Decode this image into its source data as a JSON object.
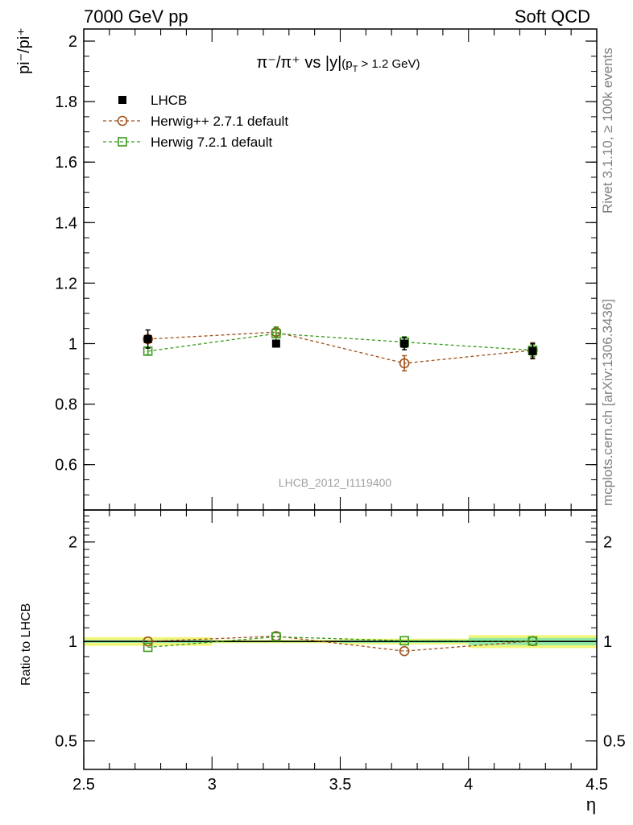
{
  "header": {
    "energy_label": "7000 GeV pp",
    "process_label": "Soft QCD"
  },
  "side_labels": {
    "rivet": "Rivet 3.1.10, ≥ 100k events",
    "mcplots": "mcplots.cern.ch [arXiv:1306.3436]"
  },
  "chart_data": [
    {
      "type": "scatter",
      "title_main": "π⁻/π⁺ vs |y|",
      "title_sub": "(p",
      "title_sub_index": "T",
      "title_sub_rest": " > 1.2 GeV)",
      "ylabel": "pi⁻/pi⁺",
      "watermark": "LHCB_2012_I1119400",
      "ylim": [
        0.45,
        2.04
      ],
      "y_ticks": [
        "0.6",
        "0.8",
        "1",
        "1.2",
        "1.4",
        "1.6",
        "1.8",
        "2"
      ],
      "legend_position": "top-left",
      "series": [
        {
          "name": "LHCB",
          "color": "#000000",
          "marker": "filled-square",
          "line": "none",
          "x": [
            2.75,
            3.25,
            3.75,
            4.25
          ],
          "y": [
            1.015,
            1.0,
            1.0,
            0.975
          ],
          "err": [
            0.03,
            0.01,
            0.02,
            0.025
          ]
        },
        {
          "name": "Herwig++ 2.7.1 default",
          "color": "#a0521b",
          "marker": "open-circle",
          "line": "dashed",
          "x": [
            2.75,
            3.25,
            3.75,
            4.25
          ],
          "y": [
            1.015,
            1.038,
            0.935,
            0.978
          ],
          "err": [
            0.012,
            0.012,
            0.025,
            0.025
          ]
        },
        {
          "name": "Herwig 7.2.1 default",
          "color": "#3c9a1e",
          "marker": "open-square",
          "line": "dashed",
          "x": [
            2.75,
            3.25,
            3.75,
            4.25
          ],
          "y": [
            0.975,
            1.033,
            1.005,
            0.978
          ],
          "err": [
            0.012,
            0.022,
            0.018,
            0.02
          ]
        }
      ]
    },
    {
      "type": "scatter",
      "ylabel": "Ratio to LHCB",
      "xlabel": "η",
      "xlim": [
        2.5,
        4.5
      ],
      "x_ticks": [
        "2.5",
        "3",
        "3.5",
        "4",
        "4.5"
      ],
      "y_scale": "log",
      "ylim": [
        0.41,
        2.5
      ],
      "y_ticks": [
        "0.5",
        "1",
        "2"
      ],
      "reference_line": 1,
      "band_colors": {
        "outer": "#f2f57a",
        "inner": "#8fe8a8"
      },
      "bands": [
        {
          "x0": 2.5,
          "x1": 3.0,
          "outer": 0.03,
          "inner": 0.01
        },
        {
          "x0": 3.0,
          "x1": 3.5,
          "outer": 0.012,
          "inner": 0.006
        },
        {
          "x0": 3.5,
          "x1": 4.0,
          "outer": 0.02,
          "inner": 0.01
        },
        {
          "x0": 4.0,
          "x1": 4.5,
          "outer": 0.045,
          "inner": 0.025
        }
      ],
      "series": [
        {
          "name": "Herwig++ 2.7.1 default",
          "color": "#a0521b",
          "marker": "open-circle",
          "x": [
            2.75,
            3.25,
            3.75,
            4.25
          ],
          "y": [
            1.0,
            1.038,
            0.935,
            1.003
          ]
        },
        {
          "name": "Herwig 7.2.1 default",
          "color": "#3c9a1e",
          "marker": "open-square",
          "x": [
            2.75,
            3.25,
            3.75,
            4.25
          ],
          "y": [
            0.96,
            1.033,
            1.005,
            1.003
          ]
        }
      ]
    }
  ]
}
